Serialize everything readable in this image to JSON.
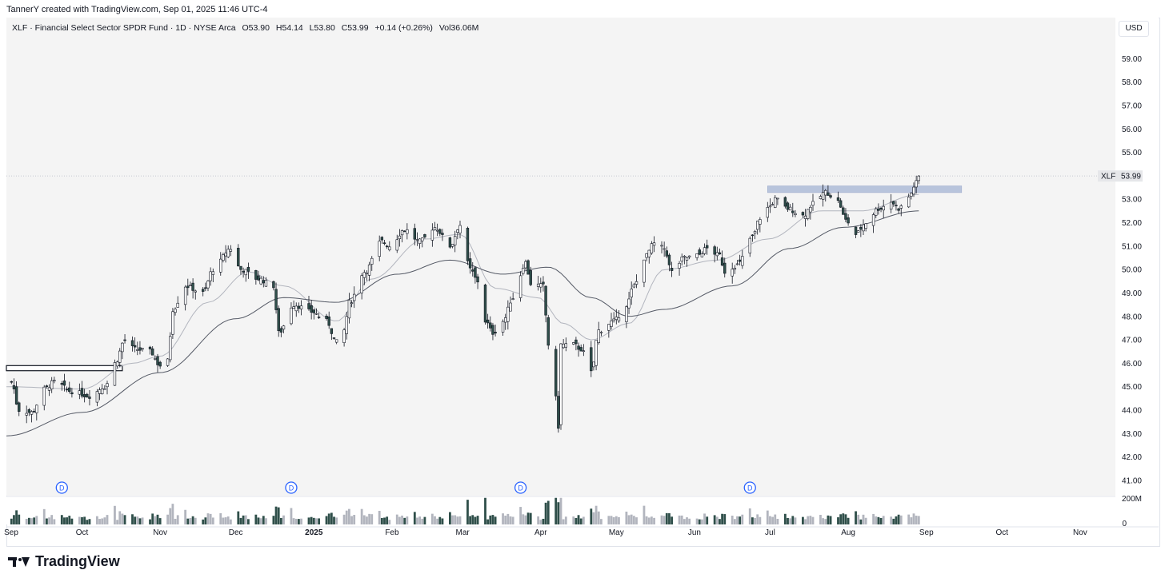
{
  "attribution": "TannerY created with TradingView.com, Sep 01, 2025 11:46 UTC-4",
  "legend": {
    "symbol": "XLF",
    "name": "Financial Select Sector SPDR Fund",
    "interval": "1D",
    "exchange": "NYSE Arca",
    "open": "O53.90",
    "high": "H54.14",
    "low": "L53.80",
    "close": "C53.99",
    "change": "+0.14 (+0.26%)",
    "volume": "Vol36.06M"
  },
  "currency": "USD",
  "price_tag": {
    "symbol": "XLF",
    "value": "53.99"
  },
  "brand": "TradingView",
  "colors": {
    "up": "#ffffff",
    "down": "#2f4f4a",
    "wick": "#131722",
    "ma_fast": "#b2b5be",
    "ma_slow": "#555a66",
    "zone": "#b8c4dc",
    "dividend": "#2962ff",
    "plot_bg": "#f4f4f4"
  },
  "chart_data": {
    "type": "candlestick",
    "y_ticks": [
      "59.00",
      "58.00",
      "57.00",
      "56.00",
      "55.00",
      "54.00",
      "53.00",
      "52.00",
      "51.00",
      "50.00",
      "49.00",
      "48.00",
      "47.00",
      "46.00",
      "45.00",
      "44.00",
      "43.00",
      "42.00",
      "41.00"
    ],
    "ylim": [
      40.35,
      60.0
    ],
    "volume_ticks": [
      "200M",
      "0"
    ],
    "volume_max": 200,
    "x_ticks": [
      {
        "label": "Sep",
        "date": "2024-09-01"
      },
      {
        "label": "Oct",
        "date": "2024-10-01"
      },
      {
        "label": "Nov",
        "date": "2024-11-01"
      },
      {
        "label": "Dec",
        "date": "2024-12-01"
      },
      {
        "label": "2025",
        "date": "2025-01-01"
      },
      {
        "label": "Feb",
        "date": "2025-02-01"
      },
      {
        "label": "Mar",
        "date": "2025-03-01"
      },
      {
        "label": "Apr",
        "date": "2025-04-01"
      },
      {
        "label": "May",
        "date": "2025-05-01"
      },
      {
        "label": "Jun",
        "date": "2025-06-01"
      },
      {
        "label": "Jul",
        "date": "2025-07-01"
      },
      {
        "label": "Aug",
        "date": "2025-08-01"
      },
      {
        "label": "Sep",
        "date": "2025-09-01"
      },
      {
        "label": "Oct",
        "date": "2025-10-01"
      },
      {
        "label": "Nov",
        "date": "2025-11-01"
      }
    ],
    "x_range": [
      "2024-09-01",
      "2025-11-15"
    ],
    "price_anchors": [
      [
        "2024-09-03",
        45.2
      ],
      [
        "2024-09-06",
        44.0
      ],
      [
        "2024-09-11",
        43.9
      ],
      [
        "2024-09-16",
        44.9
      ],
      [
        "2024-09-20",
        45.2
      ],
      [
        "2024-09-27",
        44.8
      ],
      [
        "2024-10-04",
        44.6
      ],
      [
        "2024-10-10",
        45.0
      ],
      [
        "2024-10-14",
        46.0
      ],
      [
        "2024-10-18",
        47.0
      ],
      [
        "2024-10-22",
        46.6
      ],
      [
        "2024-10-28",
        46.5
      ],
      [
        "2024-11-01",
        45.9
      ],
      [
        "2024-11-04",
        46.1
      ],
      [
        "2024-11-06",
        48.3
      ],
      [
        "2024-11-11",
        49.3
      ],
      [
        "2024-11-18",
        49.0
      ],
      [
        "2024-11-22",
        50.0
      ],
      [
        "2024-11-29",
        50.9
      ],
      [
        "2024-12-03",
        50.0
      ],
      [
        "2024-12-10",
        49.6
      ],
      [
        "2024-12-16",
        49.3
      ],
      [
        "2024-12-18",
        47.3
      ],
      [
        "2024-12-24",
        48.5
      ],
      [
        "2024-12-31",
        48.2
      ],
      [
        "2025-01-06",
        47.8
      ],
      [
        "2025-01-10",
        46.9
      ],
      [
        "2025-01-13",
        47.4
      ],
      [
        "2025-01-15",
        48.6
      ],
      [
        "2025-01-21",
        49.9
      ],
      [
        "2025-01-28",
        51.2
      ],
      [
        "2025-01-31",
        51.0
      ],
      [
        "2025-02-06",
        51.7
      ],
      [
        "2025-02-12",
        51.2
      ],
      [
        "2025-02-18",
        51.8
      ],
      [
        "2025-02-24",
        51.0
      ],
      [
        "2025-02-28",
        51.9
      ],
      [
        "2025-03-04",
        50.0
      ],
      [
        "2025-03-07",
        49.5
      ],
      [
        "2025-03-10",
        47.8
      ],
      [
        "2025-03-13",
        47.3
      ],
      [
        "2025-03-17",
        47.8
      ],
      [
        "2025-03-21",
        48.8
      ],
      [
        "2025-03-26",
        50.3
      ],
      [
        "2025-03-28",
        49.4
      ],
      [
        "2025-04-02",
        49.3
      ],
      [
        "2025-04-04",
        46.8
      ],
      [
        "2025-04-07",
        44.5
      ],
      [
        "2025-04-08",
        43.3
      ],
      [
        "2025-04-09",
        46.8
      ],
      [
        "2025-04-14",
        46.8
      ],
      [
        "2025-04-17",
        46.6
      ],
      [
        "2025-04-21",
        45.6
      ],
      [
        "2025-04-24",
        47.4
      ],
      [
        "2025-04-30",
        47.8
      ],
      [
        "2025-05-05",
        48.5
      ],
      [
        "2025-05-08",
        49.3
      ],
      [
        "2025-05-12",
        50.5
      ],
      [
        "2025-05-16",
        51.1
      ],
      [
        "2025-05-20",
        50.9
      ],
      [
        "2025-05-23",
        49.9
      ],
      [
        "2025-05-28",
        50.5
      ],
      [
        "2025-06-02",
        50.6
      ],
      [
        "2025-06-06",
        50.9
      ],
      [
        "2025-06-11",
        50.6
      ],
      [
        "2025-06-13",
        49.9
      ],
      [
        "2025-06-18",
        50.2
      ],
      [
        "2025-06-24",
        51.4
      ],
      [
        "2025-06-27",
        52.2
      ],
      [
        "2025-07-01",
        52.7
      ],
      [
        "2025-07-03",
        53.0
      ],
      [
        "2025-07-08",
        52.6
      ],
      [
        "2025-07-14",
        52.3
      ],
      [
        "2025-07-18",
        52.8
      ],
      [
        "2025-07-23",
        53.3
      ],
      [
        "2025-07-28",
        52.9
      ],
      [
        "2025-07-31",
        52.1
      ],
      [
        "2025-08-04",
        51.5
      ],
      [
        "2025-08-08",
        52.0
      ],
      [
        "2025-08-13",
        52.6
      ],
      [
        "2025-08-18",
        52.9
      ],
      [
        "2025-08-21",
        52.6
      ],
      [
        "2025-08-25",
        53.1
      ],
      [
        "2025-08-28",
        53.7
      ],
      [
        "2025-08-29",
        53.99
      ]
    ],
    "ma_fast_anchors": [
      [
        "2024-09-01",
        45.0
      ],
      [
        "2024-10-01",
        44.9
      ],
      [
        "2024-10-21",
        46.0
      ],
      [
        "2024-11-01",
        46.3
      ],
      [
        "2024-11-20",
        48.6
      ],
      [
        "2024-12-06",
        49.9
      ],
      [
        "2024-12-20",
        49.3
      ],
      [
        "2025-01-10",
        47.8
      ],
      [
        "2025-01-24",
        49.6
      ],
      [
        "2025-02-14",
        51.3
      ],
      [
        "2025-02-28",
        51.5
      ],
      [
        "2025-03-14",
        49.2
      ],
      [
        "2025-03-31",
        48.8
      ],
      [
        "2025-04-10",
        47.7
      ],
      [
        "2025-04-21",
        47.0
      ],
      [
        "2025-05-06",
        47.7
      ],
      [
        "2025-05-20",
        50.0
      ],
      [
        "2025-06-10",
        50.4
      ],
      [
        "2025-06-30",
        51.3
      ],
      [
        "2025-07-21",
        52.5
      ],
      [
        "2025-08-06",
        52.5
      ],
      [
        "2025-08-29",
        53.2
      ]
    ],
    "ma_slow_anchors": [
      [
        "2024-09-01",
        42.9
      ],
      [
        "2024-10-01",
        43.9
      ],
      [
        "2024-11-01",
        45.6
      ],
      [
        "2024-12-01",
        47.9
      ],
      [
        "2024-12-20",
        48.8
      ],
      [
        "2025-01-10",
        48.6
      ],
      [
        "2025-02-03",
        49.8
      ],
      [
        "2025-02-24",
        50.4
      ],
      [
        "2025-03-17",
        49.8
      ],
      [
        "2025-04-04",
        50.1
      ],
      [
        "2025-04-21",
        48.8
      ],
      [
        "2025-05-06",
        48.0
      ],
      [
        "2025-05-20",
        48.3
      ],
      [
        "2025-06-16",
        49.3
      ],
      [
        "2025-07-09",
        50.9
      ],
      [
        "2025-07-30",
        51.8
      ],
      [
        "2025-08-29",
        52.5
      ]
    ],
    "zones": [
      {
        "from": "2024-09-01",
        "to": "2024-10-17",
        "low": 45.75,
        "high": 45.9,
        "style": "outline"
      },
      {
        "from": "2025-06-30",
        "to": "2025-09-15",
        "low": 53.35,
        "high": 53.5,
        "style": "fill"
      }
    ],
    "dividends": [
      "2024-09-23",
      "2024-12-23",
      "2025-03-24",
      "2025-06-23"
    ],
    "dividend_label": "D",
    "last_price": 53.99
  }
}
